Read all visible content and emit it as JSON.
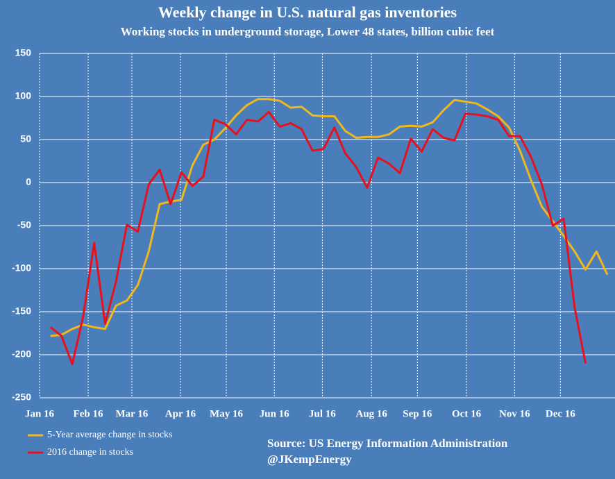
{
  "chart_data": {
    "type": "line",
    "title": "Weekly change in U.S. natural gas inventories",
    "subtitle": "Working stocks in underground storage, Lower 48 states, billion cubic feet",
    "source": "Source: US Energy Information Administration",
    "credit": "@JKempEnergy",
    "x": [
      0,
      1,
      2,
      3,
      4,
      5,
      6,
      7,
      8,
      9,
      10,
      11,
      12,
      13,
      14,
      15,
      16,
      17,
      18,
      19,
      20,
      21,
      22,
      23,
      24,
      25,
      26,
      27,
      28,
      29,
      30,
      31,
      32,
      33,
      34,
      35,
      36,
      37,
      38,
      39,
      40,
      41,
      42,
      43,
      44,
      45,
      46,
      47,
      48,
      49,
      50,
      51
    ],
    "xlim": [
      -1,
      51
    ],
    "xticks": [
      {
        "value": -1,
        "label": "Jan 16"
      },
      {
        "value": 3.45,
        "label": "Feb 16"
      },
      {
        "value": 7.45,
        "label": "Mar 16"
      },
      {
        "value": 11.9,
        "label": "Apr 16"
      },
      {
        "value": 16.1,
        "label": "May 16"
      },
      {
        "value": 20.5,
        "label": "Jun 16"
      },
      {
        "value": 24.9,
        "label": "Jul 16"
      },
      {
        "value": 29.4,
        "label": "Aug 16"
      },
      {
        "value": 33.6,
        "label": "Sep 16"
      },
      {
        "value": 38.1,
        "label": "Oct 16"
      },
      {
        "value": 42.5,
        "label": "Nov 16"
      },
      {
        "value": 46.7,
        "label": "Dec 16"
      }
    ],
    "ylim": [
      -250,
      150
    ],
    "yticks": [
      -250,
      -200,
      -150,
      -100,
      -50,
      0,
      50,
      100,
      150
    ],
    "grid": true,
    "series": [
      {
        "name": "5-Year average change in stocks",
        "color": "#f0b81c",
        "values": [
          -178,
          -177,
          -170,
          -165,
          -168,
          -170,
          -143,
          -137,
          -119,
          -80,
          -25,
          -22,
          -20,
          20,
          44,
          50,
          63,
          78,
          90,
          97,
          97,
          95,
          87,
          88,
          78,
          77,
          77,
          60,
          52,
          53,
          53,
          56,
          65,
          66,
          65,
          70,
          84,
          96,
          94,
          92,
          85,
          77,
          64,
          37,
          3,
          -28,
          -45,
          -62,
          -80,
          -101,
          -80,
          -107
        ]
      },
      {
        "name": "2016 change in stocks",
        "color": "#e8101c",
        "values": [
          -168,
          -178,
          -211,
          -155,
          -70,
          -164,
          -115,
          -49,
          -57,
          -2,
          15,
          -25,
          12,
          -4,
          7,
          73,
          68,
          56,
          73,
          71,
          82,
          65,
          69,
          62,
          37,
          39,
          64,
          34,
          18,
          -6,
          29,
          22,
          11,
          51,
          36,
          62,
          52,
          49,
          80,
          79,
          77,
          73,
          54,
          54,
          30,
          -2,
          -50,
          -42,
          -145,
          -210,
          null,
          null
        ]
      }
    ]
  }
}
